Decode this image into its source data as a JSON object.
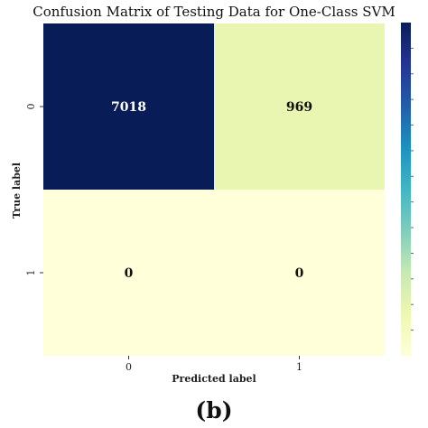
{
  "chart_data": {
    "type": "heatmap",
    "title": "Confusion Matrix of Testing Data for One-Class SVM",
    "xlabel": "Predicted label",
    "ylabel": "True label",
    "x_categories": [
      "0",
      "1"
    ],
    "y_categories": [
      "0",
      "1"
    ],
    "values": [
      [
        7018,
        969
      ],
      [
        0,
        0
      ]
    ],
    "colormap": "YlGnBu",
    "colorbar": true,
    "vmin": 0,
    "vmax": 7018,
    "colors": {
      "low": "#ffffd9",
      "mid_light": "#edf8b1",
      "high": "#081d58",
      "dark_text": "#111111",
      "light_text": "#ffffff"
    }
  },
  "caption": "(b)"
}
